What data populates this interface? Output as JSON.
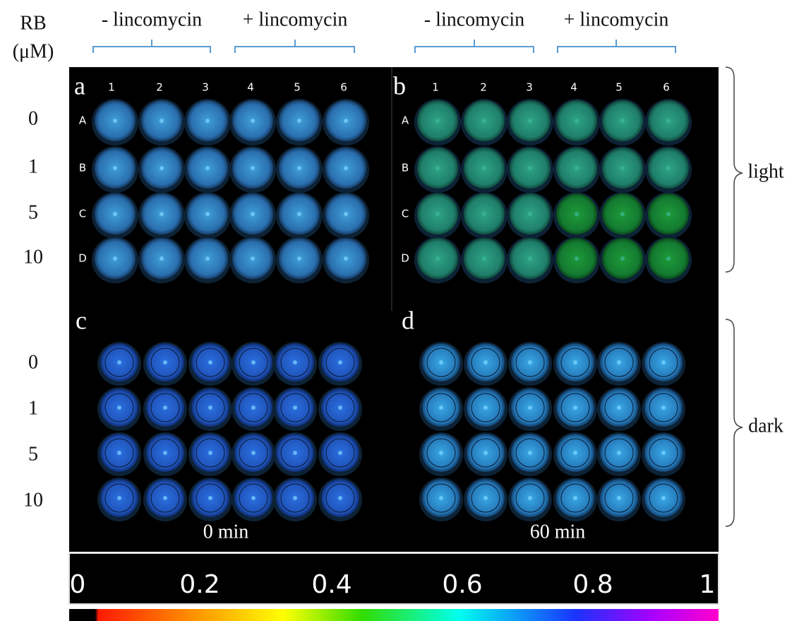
{
  "header": {
    "axis_title": "RB",
    "axis_unit": "(μM)",
    "groups": [
      "- lincomycin",
      "+ lincomycin",
      "- lincomycin",
      "+ lincomycin"
    ]
  },
  "row_labels_top": [
    "0",
    "1",
    "5",
    "10"
  ],
  "row_labels_bottom": [
    "0",
    "1",
    "5",
    "10"
  ],
  "panels": [
    {
      "letter": "a",
      "columns": [
        "1",
        "2",
        "3",
        "4",
        "5",
        "6"
      ],
      "rows": [
        "A",
        "B",
        "C",
        "D"
      ]
    },
    {
      "letter": "b",
      "columns": [
        "1",
        "2",
        "3",
        "4",
        "5",
        "6"
      ],
      "rows": [
        "A",
        "B",
        "C",
        "D"
      ]
    },
    {
      "letter": "c",
      "time": "0 min"
    },
    {
      "letter": "d",
      "time": "60 min"
    }
  ],
  "brackets": [
    "light",
    "dark"
  ],
  "colorbar": {
    "ticks": [
      "0",
      "0.2",
      "0.4",
      "0.6",
      "0.8",
      "1"
    ]
  }
}
